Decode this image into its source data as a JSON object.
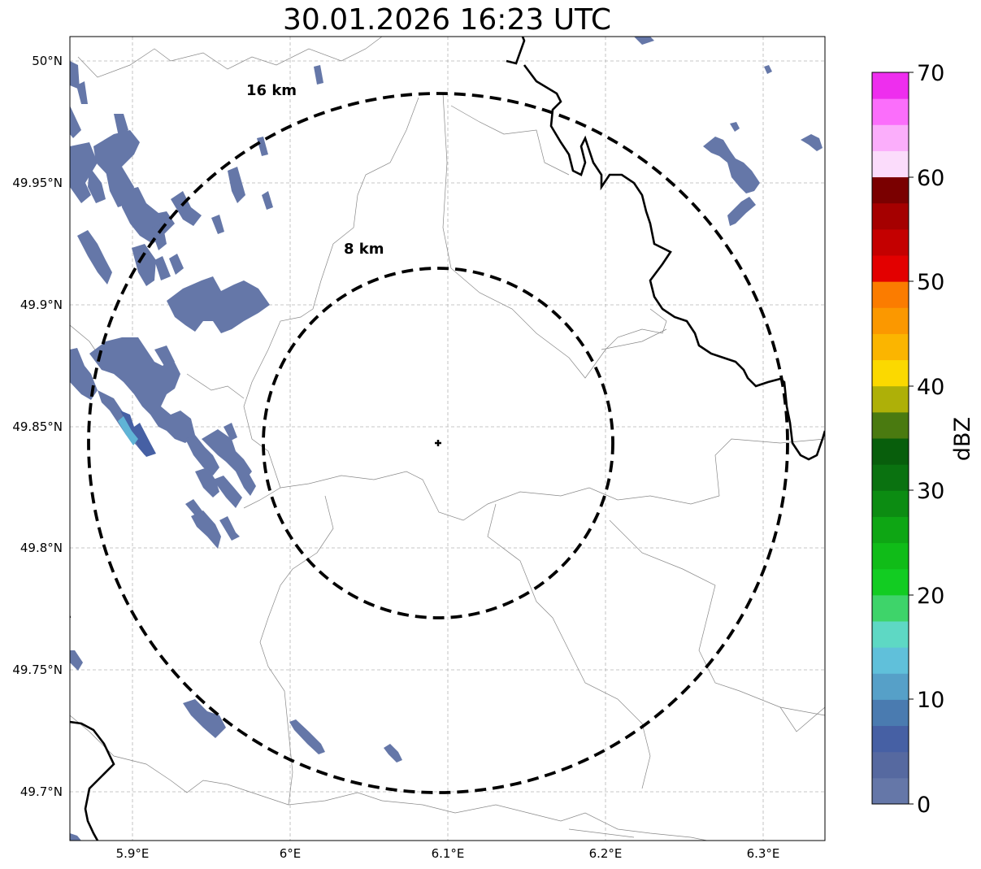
{
  "title": "30.01.2026 16:23 UTC",
  "map": {
    "lon_range": [
      5.86,
      6.34
    ],
    "lat_range": [
      49.68,
      50.01
    ],
    "x_ticks": [
      {
        "value": 5.9,
        "label": "5.9°E"
      },
      {
        "value": 6.0,
        "label": "6°E"
      },
      {
        "value": 6.1,
        "label": "6.1°E"
      },
      {
        "value": 6.2,
        "label": "6.2°E"
      },
      {
        "value": 6.3,
        "label": "6.3°E"
      }
    ],
    "y_ticks": [
      {
        "value": 49.7,
        "label": "49.7°N"
      },
      {
        "value": 49.75,
        "label": "49.75°N"
      },
      {
        "value": 49.8,
        "label": "49.8°N"
      },
      {
        "value": 49.85,
        "label": "49.85°N"
      },
      {
        "value": 49.9,
        "label": "49.9°N"
      },
      {
        "value": 49.95,
        "label": "49.95°N"
      },
      {
        "value": 50.0,
        "label": "50°N"
      }
    ],
    "gridlines": true,
    "radar_site": {
      "lon": 6.095,
      "lat": 49.843
    },
    "range_rings": [
      {
        "radius_km": 8,
        "label": "8 km"
      },
      {
        "radius_km": 16,
        "label": "16 km"
      }
    ]
  },
  "colorbar": {
    "label": "dBZ",
    "min": 0,
    "max": 70,
    "ticks": [
      0,
      10,
      20,
      30,
      40,
      50,
      60,
      70
    ],
    "colors": [
      "#6577a8",
      "#5669a0",
      "#4660a4",
      "#4a7bb0",
      "#56a0c8",
      "#60c0da",
      "#5ed8c4",
      "#3ed46a",
      "#12cc22",
      "#10bc18",
      "#0ea614",
      "#0c8c12",
      "#0a7210",
      "#085e0c",
      "#4a7a10",
      "#aeb008",
      "#fbd900",
      "#fbb500",
      "#fb9800",
      "#fb7c00",
      "#e30000",
      "#c40000",
      "#a50000",
      "#7a0000",
      "#fbdcfb",
      "#fbaefb",
      "#fb6efb",
      "#ee2eee"
    ]
  },
  "chart_data": {
    "type": "heatmap",
    "title": "30.01.2026 16:23 UTC",
    "xlabel": "",
    "ylabel": "",
    "xlim": [
      5.86,
      6.34
    ],
    "ylim": [
      49.68,
      50.01
    ],
    "colorbar_label": "dBZ",
    "colorbar_range": [
      0,
      70
    ],
    "echo_cells": [
      {
        "lon": 5.875,
        "lat": 49.96,
        "dbz": 3
      },
      {
        "lon": 5.9,
        "lat": 49.955,
        "dbz": 3
      },
      {
        "lon": 5.93,
        "lat": 49.965,
        "dbz": 3
      },
      {
        "lon": 5.92,
        "lat": 49.93,
        "dbz": 3
      },
      {
        "lon": 5.905,
        "lat": 49.915,
        "dbz": 3
      },
      {
        "lon": 5.945,
        "lat": 49.94,
        "dbz": 3
      },
      {
        "lon": 5.96,
        "lat": 49.905,
        "dbz": 2
      },
      {
        "lon": 5.985,
        "lat": 49.9,
        "dbz": 2
      },
      {
        "lon": 5.87,
        "lat": 49.87,
        "dbz": 3
      },
      {
        "lon": 5.9,
        "lat": 49.875,
        "dbz": 4
      },
      {
        "lon": 5.925,
        "lat": 49.865,
        "dbz": 3
      },
      {
        "lon": 5.93,
        "lat": 49.85,
        "dbz": 5
      },
      {
        "lon": 5.9,
        "lat": 49.853,
        "dbz": 12
      },
      {
        "lon": 5.955,
        "lat": 49.835,
        "dbz": 3
      },
      {
        "lon": 5.965,
        "lat": 49.82,
        "dbz": 3
      },
      {
        "lon": 5.94,
        "lat": 49.81,
        "dbz": 3
      },
      {
        "lon": 5.875,
        "lat": 49.755,
        "dbz": 2
      },
      {
        "lon": 5.945,
        "lat": 49.725,
        "dbz": 3
      },
      {
        "lon": 6.02,
        "lat": 49.72,
        "dbz": 3
      },
      {
        "lon": 6.075,
        "lat": 49.71,
        "dbz": 3
      },
      {
        "lon": 5.98,
        "lat": 49.965,
        "dbz": 2
      },
      {
        "lon": 6.01,
        "lat": 49.995,
        "dbz": 2
      },
      {
        "lon": 6.225,
        "lat": 50.005,
        "dbz": 2
      },
      {
        "lon": 6.3,
        "lat": 49.997,
        "dbz": 2
      },
      {
        "lon": 6.275,
        "lat": 49.965,
        "dbz": 2
      },
      {
        "lon": 6.285,
        "lat": 49.955,
        "dbz": 3
      },
      {
        "lon": 6.3,
        "lat": 49.95,
        "dbz": 3
      },
      {
        "lon": 6.29,
        "lat": 49.94,
        "dbz": 3
      },
      {
        "lon": 6.33,
        "lat": 49.968,
        "dbz": 2
      }
    ]
  }
}
